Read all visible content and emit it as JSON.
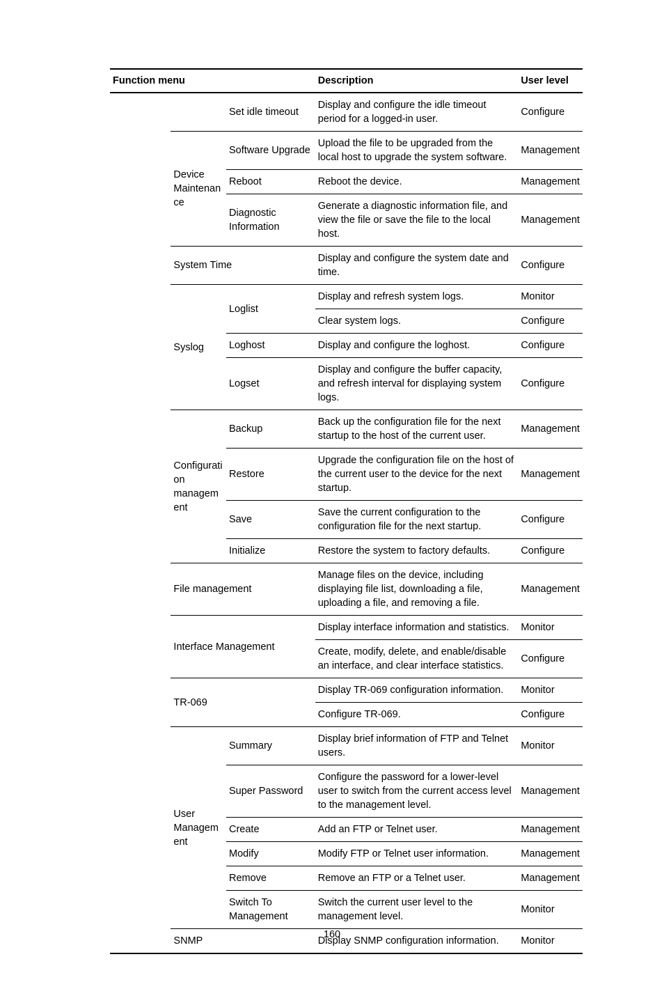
{
  "page_number": "160",
  "colors": {
    "text": "#000000",
    "background": "#ffffff",
    "rule": "#000000"
  },
  "typography": {
    "base_font_family": "Futura, Arial, Helvetica, sans-serif",
    "base_font_size_pt": 11,
    "header_font_weight": 700,
    "body_font_weight": 400,
    "line_height": 1.38
  },
  "table": {
    "headers": {
      "function_menu": "Function menu",
      "description": "Description",
      "user_level": "User level"
    },
    "rows": [
      {
        "group": "",
        "sub": "Set idle timeout",
        "desc": "Display and configure the idle timeout period for a logged-in user.",
        "level": "Configure"
      },
      {
        "group": "Device Maintenance",
        "sub": "Software Upgrade",
        "desc": "Upload the file to be upgraded from the local host to upgrade the system software.",
        "level": "Management"
      },
      {
        "group": "",
        "sub": "Reboot",
        "desc": "Reboot the device.",
        "level": "Management"
      },
      {
        "group": "",
        "sub": "Diagnostic Information",
        "desc": "Generate a diagnostic information file, and view the file or save the file to the local host.",
        "level": "Management"
      },
      {
        "group": "System Time",
        "sub": "",
        "desc": "Display and configure the system date and time.",
        "level": "Configure"
      },
      {
        "group": "Syslog",
        "sub": "Loglist",
        "desc": "Display and refresh system logs.",
        "level": "Monitor"
      },
      {
        "group": "",
        "sub": "",
        "desc": "Clear system logs.",
        "level": "Configure"
      },
      {
        "group": "",
        "sub": "Loghost",
        "desc": "Display and configure the loghost.",
        "level": "Configure"
      },
      {
        "group": "",
        "sub": "Logset",
        "desc": "Display and configure the buffer capacity, and refresh interval for displaying system logs.",
        "level": "Configure"
      },
      {
        "group": "Configuration management",
        "sub": "Backup",
        "desc": "Back up the configuration file for the next startup to the host of the current user.",
        "level": "Management"
      },
      {
        "group": "",
        "sub": "Restore",
        "desc": "Upgrade the configuration file on the host of the current user to the device for the next startup.",
        "level": "Management"
      },
      {
        "group": "",
        "sub": "Save",
        "desc": "Save the current configuration to the configuration file for the next startup.",
        "level": "Configure"
      },
      {
        "group": "",
        "sub": "Initialize",
        "desc": "Restore the system to factory defaults.",
        "level": "Configure"
      },
      {
        "group": "File management",
        "sub": "",
        "desc": "Manage files on the device, including displaying file list, downloading a file, uploading a file, and removing a file.",
        "level": "Management"
      },
      {
        "group": "Interface Management",
        "sub": "",
        "desc": "Display interface information and statistics.",
        "level": "Monitor"
      },
      {
        "group": "",
        "sub": "",
        "desc": "Create, modify, delete, and enable/disable an interface, and clear interface statistics.",
        "level": "Configure"
      },
      {
        "group": "TR-069",
        "sub": "",
        "desc": "Display TR-069 configuration information.",
        "level": "Monitor"
      },
      {
        "group": "",
        "sub": "",
        "desc": "Configure TR-069.",
        "level": "Configure"
      },
      {
        "group": "User Management",
        "sub": "Summary",
        "desc": "Display brief information of FTP and Telnet users.",
        "level": "Monitor"
      },
      {
        "group": "",
        "sub": "Super Password",
        "desc": "Configure the password for a lower-level user to switch from the current access level to the management level.",
        "level": "Management"
      },
      {
        "group": "",
        "sub": "Create",
        "desc": "Add an FTP or Telnet user.",
        "level": "Management"
      },
      {
        "group": "",
        "sub": "Modify",
        "desc": "Modify FTP or Telnet user information.",
        "level": "Management"
      },
      {
        "group": "",
        "sub": "Remove",
        "desc": "Remove an FTP or a Telnet user.",
        "level": "Management"
      },
      {
        "group": "",
        "sub": "Switch To Management",
        "desc": "Switch the current user level to the management level.",
        "level": "Monitor"
      },
      {
        "group": "SNMP",
        "sub": "",
        "desc": "Display SNMP configuration information.",
        "level": "Monitor"
      }
    ],
    "group_spans": {
      "0": 1,
      "1": 3,
      "4": 1,
      "5": 4,
      "9": 4,
      "13": 1,
      "14": 2,
      "16": 2,
      "18": 6,
      "24": 1
    },
    "sub_spans": {
      "5": 2
    },
    "group_col_merge_with_sub": {
      "4": true,
      "13": true,
      "14": true,
      "16": true,
      "24": true
    }
  }
}
